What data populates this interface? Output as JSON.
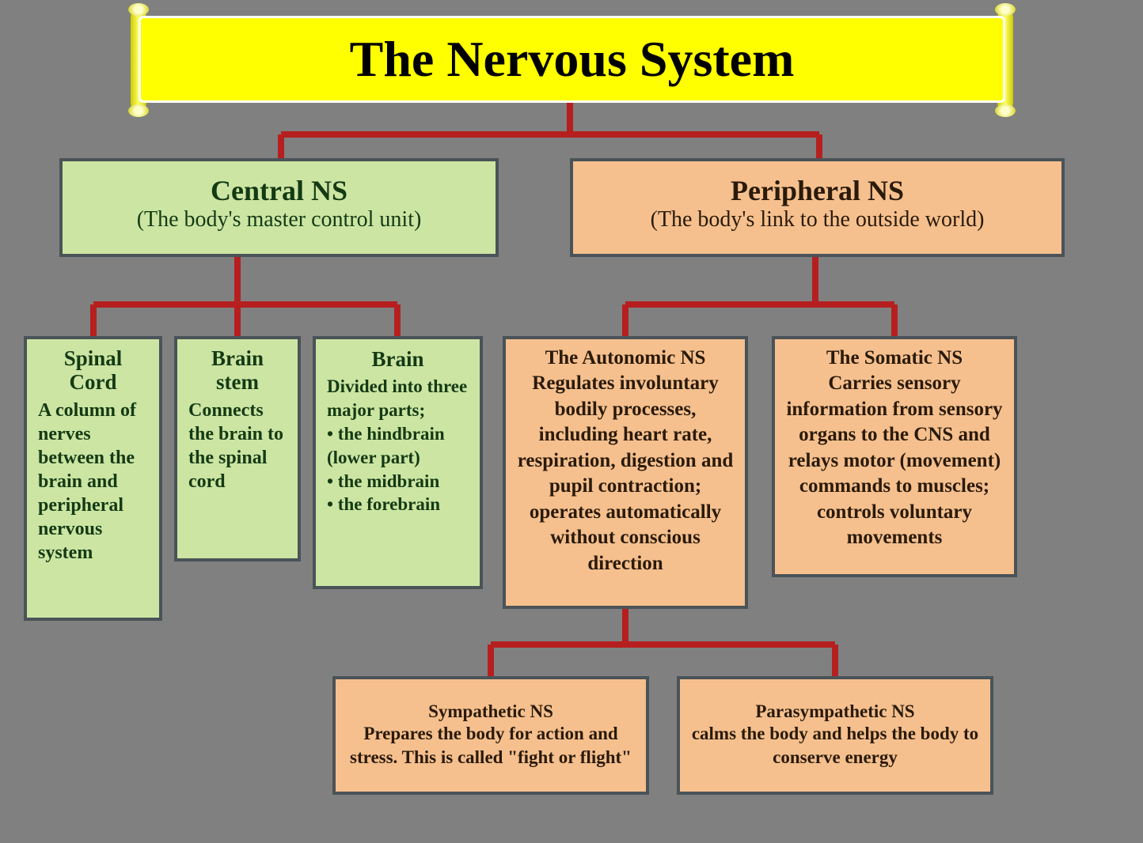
{
  "diagram": {
    "type": "tree",
    "background_color": "#808080",
    "connector_color": "#b61f1f",
    "connector_width": 8,
    "title": {
      "text": "The Nervous System",
      "bg_color": "#ffff00",
      "border_color": "#ffffff",
      "text_color": "#000000",
      "font_size": 64,
      "font_weight": "bold"
    },
    "palette": {
      "green_bg": "#cce5a3",
      "green_text": "#143a14",
      "peach_bg": "#f5c08e",
      "peach_text": "#2a1a0a",
      "box_border": "#4a5358"
    },
    "nodes": {
      "central": {
        "heading": "Central NS",
        "subheading": "(The body's master control unit)",
        "color": "green"
      },
      "peripheral": {
        "heading": "Peripheral NS",
        "subheading": "(The body's link to the outside world)",
        "color": "peach"
      },
      "spinal_cord": {
        "heading": "Spinal Cord",
        "body": "A column of nerves between the brain and peripheral nervous system",
        "color": "green"
      },
      "brain_stem": {
        "heading": "Brain stem",
        "body": "Connects the brain to the spinal cord",
        "color": "green"
      },
      "brain": {
        "heading": "Brain",
        "body_html": "Divided into three major parts;<br>• the hindbrain (lower part)<br>• the midbrain<br>• the forebrain",
        "color": "green"
      },
      "autonomic": {
        "heading": "The Autonomic NS",
        "body": "Regulates involuntary bodily processes, including heart rate, respiration, digestion and  pupil contraction; operates automatically without conscious direction",
        "color": "peach"
      },
      "somatic": {
        "heading": "The Somatic NS",
        "body": "Carries sensory information from sensory organs to the CNS and relays motor (movement) commands to muscles; controls voluntary movements",
        "color": "peach"
      },
      "sympathetic": {
        "heading": "Sympathetic NS",
        "body_html": "Prepares the body for action and stress. This is called <b>\"fight or flight\"</b>",
        "color": "peach"
      },
      "parasympathetic": {
        "heading": "Parasympathetic NS",
        "body": "calms the body and helps the body to conserve energy",
        "color": "peach"
      }
    },
    "edges": [
      {
        "from": "title",
        "to": "central"
      },
      {
        "from": "title",
        "to": "peripheral"
      },
      {
        "from": "central",
        "to": "spinal_cord"
      },
      {
        "from": "central",
        "to": "brain_stem"
      },
      {
        "from": "central",
        "to": "brain"
      },
      {
        "from": "peripheral",
        "to": "autonomic"
      },
      {
        "from": "peripheral",
        "to": "somatic"
      },
      {
        "from": "autonomic",
        "to": "sympathetic"
      },
      {
        "from": "autonomic",
        "to": "parasympathetic"
      }
    ],
    "connector_paths": [
      "M 720 130 L 720 170 M 355 170 L 1035 170 M 355 170 L 355 200 M 1035 170 L 1035 200",
      "M 300 325 L 300 385 M 118 385 L 502 385 M 118 385 L 118 425 M 300 385 L 300 425 M 502 385 L 502 425",
      "M 1030 325 L 1030 385 M 790 385 L 1130 385 M 790 385 L 790 425 M 1130 385 L 1130 425",
      "M 790 770 L 790 815 M 620 815 L 1055 815 M 620 815 L 620 855 M 1055 815 L 1055 855"
    ]
  }
}
